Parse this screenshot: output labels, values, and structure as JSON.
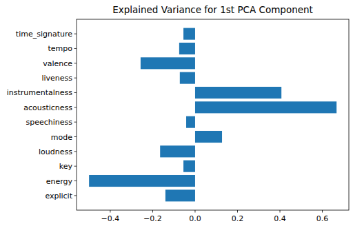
{
  "chart_data": {
    "type": "bar",
    "orientation": "horizontal",
    "title": "Explained Variance for 1st PCA Component",
    "categories": [
      "explicit",
      "energy",
      "key",
      "loudness",
      "mode",
      "speechiness",
      "acousticness",
      "instrumentalness",
      "liveness",
      "valence",
      "tempo",
      "time_signature"
    ],
    "values": [
      -0.14,
      -0.5,
      -0.055,
      -0.165,
      0.127,
      -0.042,
      0.667,
      0.407,
      -0.072,
      -0.257,
      -0.075,
      -0.055
    ],
    "color": "#1f77b4",
    "xlim": [
      -0.559,
      0.725
    ],
    "xticks": [
      {
        "value": -0.4,
        "label": "−0.4"
      },
      {
        "value": -0.2,
        "label": "−0.2"
      },
      {
        "value": 0.0,
        "label": "0.0"
      },
      {
        "value": 0.2,
        "label": "0.2"
      },
      {
        "value": 0.4,
        "label": "0.4"
      },
      {
        "value": 0.6,
        "label": "0.6"
      }
    ],
    "grid": false
  }
}
